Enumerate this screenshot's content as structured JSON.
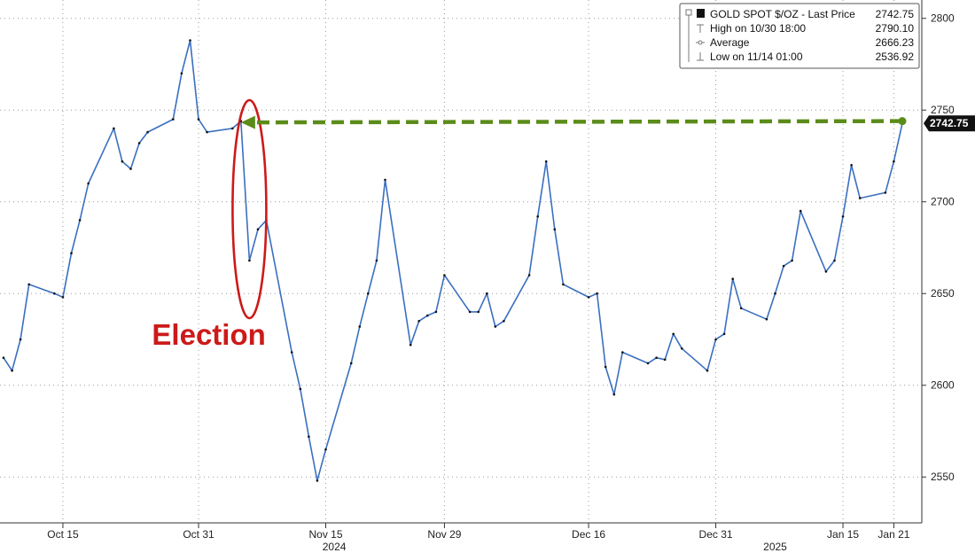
{
  "chart_data": {
    "type": "line",
    "series": [
      {
        "name": "GOLD SPOT $/OZ - Last Price",
        "last_price": "2742.75",
        "x": [
          "2024-10-08",
          "2024-10-09",
          "2024-10-10",
          "2024-10-11",
          "2024-10-14",
          "2024-10-15",
          "2024-10-16",
          "2024-10-17",
          "2024-10-18",
          "2024-10-21",
          "2024-10-22",
          "2024-10-23",
          "2024-10-24",
          "2024-10-25",
          "2024-10-28",
          "2024-10-29",
          "2024-10-30",
          "2024-10-31",
          "2024-11-01",
          "2024-11-04",
          "2024-11-05",
          "2024-11-06",
          "2024-11-07",
          "2024-11-08",
          "2024-11-11",
          "2024-11-12",
          "2024-11-13",
          "2024-11-14",
          "2024-11-15",
          "2024-11-18",
          "2024-11-19",
          "2024-11-20",
          "2024-11-21",
          "2024-11-22",
          "2024-11-25",
          "2024-11-26",
          "2024-11-27",
          "2024-11-28",
          "2024-11-29",
          "2024-12-02",
          "2024-12-03",
          "2024-12-04",
          "2024-12-05",
          "2024-12-06",
          "2024-12-09",
          "2024-12-10",
          "2024-12-11",
          "2024-12-12",
          "2024-12-13",
          "2024-12-16",
          "2024-12-17",
          "2024-12-18",
          "2024-12-19",
          "2024-12-20",
          "2024-12-23",
          "2024-12-24",
          "2024-12-25",
          "2024-12-26",
          "2024-12-27",
          "2024-12-30",
          "2024-12-31",
          "2025-01-01",
          "2025-01-02",
          "2025-01-03",
          "2025-01-06",
          "2025-01-07",
          "2025-01-08",
          "2025-01-09",
          "2025-01-10",
          "2025-01-13",
          "2025-01-14",
          "2025-01-15",
          "2025-01-16",
          "2025-01-17",
          "2025-01-20",
          "2025-01-21",
          "2025-01-22"
        ],
        "values": [
          2615,
          2608,
          2625,
          2655,
          2650,
          2648,
          2672,
          2690,
          2710,
          2740,
          2722,
          2718,
          2732,
          2738,
          2745,
          2770,
          2788,
          2745,
          2738,
          2740,
          2744,
          2668,
          2685,
          2690,
          2618,
          2598,
          2572,
          2548,
          2565,
          2612,
          2632,
          2650,
          2668,
          2712,
          2622,
          2635,
          2638,
          2640,
          2660,
          2640,
          2640,
          2650,
          2632,
          2635,
          2660,
          2692,
          2722,
          2685,
          2655,
          2648,
          2650,
          2610,
          2595,
          2618,
          2612,
          2615,
          2614,
          2628,
          2620,
          2608,
          2625,
          2628,
          2658,
          2642,
          2636,
          2650,
          2665,
          2668,
          2695,
          2662,
          2668,
          2692,
          2720,
          2702,
          2705,
          2722,
          2742.75
        ]
      }
    ],
    "legend": {
      "title": "GOLD SPOT $/OZ - Last Price",
      "title_value": "2742.75",
      "rows": [
        {
          "label": "High on 10/30 18:00",
          "value": "2790.10"
        },
        {
          "label": "Average",
          "value": "2666.23"
        },
        {
          "label": "Low on 11/14 01:00",
          "value": "2536.92"
        }
      ],
      "position": "top-right"
    },
    "y_ticks": [
      2550,
      2600,
      2650,
      2700,
      2750,
      2800
    ],
    "ylim": [
      2525,
      2810
    ],
    "x_ticks": [
      {
        "date": "2024-10-15",
        "label": "Oct 15"
      },
      {
        "date": "2024-10-31",
        "label": "Oct 31"
      },
      {
        "date": "2024-11-15",
        "label": "Nov 15"
      },
      {
        "date": "2024-11-29",
        "label": "Nov 29"
      },
      {
        "date": "2024-12-16",
        "label": "Dec 16"
      },
      {
        "date": "2024-12-31",
        "label": "Dec 31"
      },
      {
        "date": "2025-01-15",
        "label": "Jan 15"
      },
      {
        "date": "2025-01-21",
        "label": "Jan 21"
      }
    ],
    "year_labels": [
      {
        "date": "2024-11-16",
        "label": "2024"
      },
      {
        "date": "2025-01-07",
        "label": "2025"
      }
    ],
    "xlim": [
      "2024-10-08",
      "2025-01-22"
    ],
    "annotation": {
      "text": "Election",
      "date": "2024-11-06",
      "color": "#cc1a1a"
    },
    "reference_arrow": {
      "from_date": "2025-01-22",
      "to_date": "2024-11-05",
      "value": 2744,
      "color": "#5b8c1a"
    },
    "colors": {
      "line": "#3a6fc0",
      "background": "#ffffff",
      "grid": "#9a9a9a",
      "last_price_tag": "#111111"
    },
    "grid": true,
    "title": "",
    "xlabel": "",
    "ylabel": ""
  }
}
